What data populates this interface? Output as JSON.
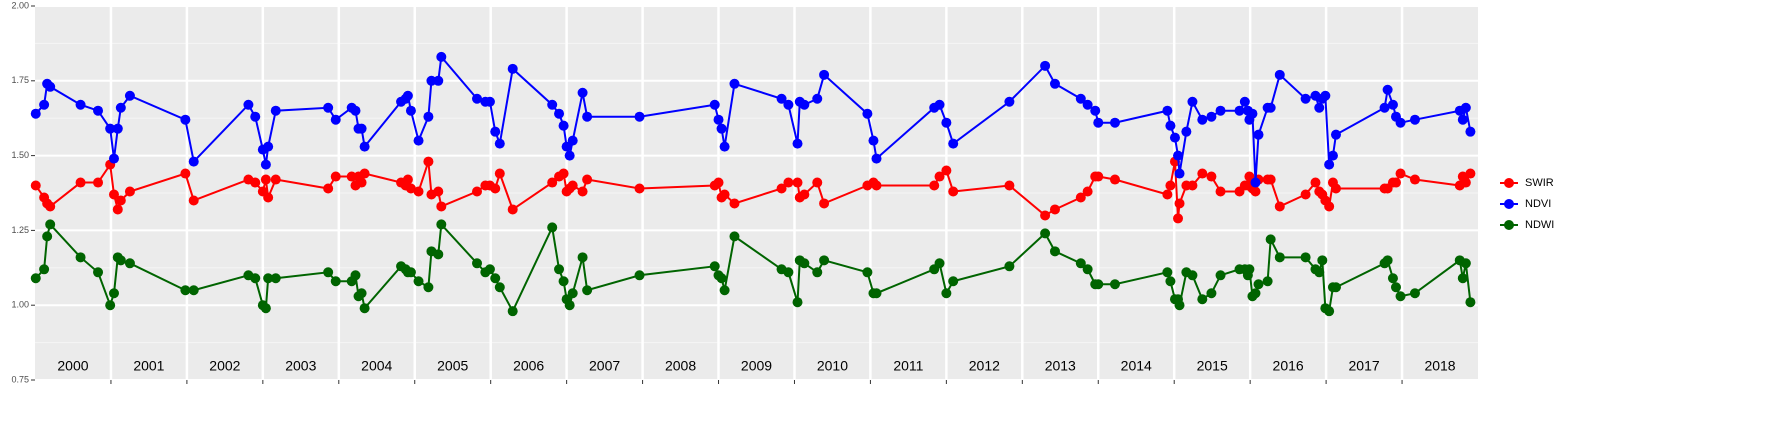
{
  "chart_data": {
    "type": "line",
    "x": [
      2000.01,
      2000.12,
      2000.16,
      2000.2,
      2000.6,
      2000.83,
      2000.99,
      2001.04,
      2001.09,
      2001.13,
      2001.25,
      2001.98,
      2002.09,
      2002.81,
      2002.9,
      2003.0,
      2003.04,
      2003.07,
      2003.17,
      2003.86,
      2003.96,
      2004.17,
      2004.22,
      2004.26,
      2004.3,
      2004.34,
      2004.82,
      2004.88,
      2004.91,
      2004.95,
      2005.05,
      2005.18,
      2005.22,
      2005.31,
      2005.35,
      2005.82,
      2005.93,
      2005.99,
      2006.06,
      2006.12,
      2006.29,
      2006.81,
      2006.9,
      2006.96,
      2007.0,
      2007.04,
      2007.08,
      2007.21,
      2007.27,
      2007.96,
      2008.95,
      2009.0,
      2009.04,
      2009.08,
      2009.21,
      2009.83,
      2009.92,
      2010.04,
      2010.07,
      2010.13,
      2010.3,
      2010.39,
      2010.96,
      2011.04,
      2011.08,
      2011.84,
      2011.91,
      2012.0,
      2012.09,
      2012.83,
      2013.3,
      2013.43,
      2013.77,
      2013.86,
      2013.96,
      2014.0,
      2014.22,
      2014.91,
      2014.95,
      2015.01,
      2015.05,
      2015.07,
      2015.16,
      2015.24,
      2015.37,
      2015.49,
      2015.61,
      2015.86,
      2015.93,
      2015.97,
      2015.99,
      2016.03,
      2016.07,
      2016.11,
      2016.23,
      2016.27,
      2016.39,
      2016.73,
      2016.86,
      2016.91,
      2016.95,
      2016.99,
      2017.04,
      2017.09,
      2017.13,
      2017.77,
      2017.81,
      2017.88,
      2017.92,
      2017.98,
      2018.17,
      2018.76,
      2018.8,
      2018.84,
      2018.9
    ],
    "series": [
      {
        "name": "SWIR",
        "color": "#ff0000",
        "values": [
          1.4,
          1.36,
          1.34,
          1.33,
          1.41,
          1.41,
          1.47,
          1.37,
          1.32,
          1.35,
          1.38,
          1.44,
          1.35,
          1.42,
          1.41,
          1.38,
          1.42,
          1.36,
          1.42,
          1.39,
          1.43,
          1.43,
          1.4,
          1.43,
          1.41,
          1.44,
          1.41,
          1.4,
          1.42,
          1.39,
          1.38,
          1.48,
          1.37,
          1.38,
          1.33,
          1.38,
          1.4,
          1.4,
          1.39,
          1.44,
          1.32,
          1.41,
          1.43,
          1.44,
          1.38,
          1.39,
          1.4,
          1.38,
          1.42,
          1.39,
          1.4,
          1.41,
          1.36,
          1.37,
          1.34,
          1.39,
          1.41,
          1.41,
          1.36,
          1.37,
          1.41,
          1.34,
          1.4,
          1.41,
          1.4,
          1.4,
          1.43,
          1.45,
          1.38,
          1.4,
          1.3,
          1.32,
          1.36,
          1.38,
          1.43,
          1.43,
          1.42,
          1.37,
          1.4,
          1.48,
          1.29,
          1.34,
          1.4,
          1.4,
          1.44,
          1.43,
          1.38,
          1.38,
          1.4,
          1.4,
          1.43,
          1.39,
          1.38,
          1.42,
          1.42,
          1.42,
          1.33,
          1.37,
          1.41,
          1.38,
          1.37,
          1.35,
          1.33,
          1.41,
          1.39,
          1.39,
          1.39,
          1.41,
          1.41,
          1.44,
          1.42,
          1.4,
          1.43,
          1.41,
          1.44
        ]
      },
      {
        "name": "NDVI",
        "color": "#0000ff",
        "values": [
          1.64,
          1.67,
          1.74,
          1.73,
          1.67,
          1.65,
          1.59,
          1.49,
          1.59,
          1.66,
          1.7,
          1.62,
          1.48,
          1.67,
          1.63,
          1.52,
          1.47,
          1.53,
          1.65,
          1.66,
          1.62,
          1.66,
          1.65,
          1.59,
          1.59,
          1.53,
          1.68,
          1.69,
          1.7,
          1.65,
          1.55,
          1.63,
          1.75,
          1.75,
          1.83,
          1.69,
          1.68,
          1.68,
          1.58,
          1.54,
          1.79,
          1.67,
          1.64,
          1.6,
          1.53,
          1.5,
          1.55,
          1.71,
          1.63,
          1.63,
          1.67,
          1.62,
          1.59,
          1.53,
          1.74,
          1.69,
          1.67,
          1.54,
          1.68,
          1.67,
          1.69,
          1.77,
          1.64,
          1.55,
          1.49,
          1.66,
          1.67,
          1.61,
          1.54,
          1.68,
          1.8,
          1.74,
          1.69,
          1.67,
          1.65,
          1.61,
          1.61,
          1.65,
          1.6,
          1.56,
          1.5,
          1.44,
          1.58,
          1.68,
          1.62,
          1.63,
          1.65,
          1.65,
          1.68,
          1.65,
          1.62,
          1.64,
          1.41,
          1.57,
          1.66,
          1.66,
          1.77,
          1.69,
          1.7,
          1.66,
          1.69,
          1.7,
          1.47,
          1.5,
          1.57,
          1.66,
          1.72,
          1.67,
          1.63,
          1.61,
          1.62,
          1.65,
          1.62,
          1.66,
          1.58
        ]
      },
      {
        "name": "NDWI",
        "color": "#006400",
        "values": [
          1.09,
          1.12,
          1.23,
          1.27,
          1.16,
          1.11,
          1.0,
          1.04,
          1.16,
          1.15,
          1.14,
          1.05,
          1.05,
          1.1,
          1.09,
          1.0,
          0.99,
          1.09,
          1.09,
          1.11,
          1.08,
          1.08,
          1.1,
          1.03,
          1.04,
          0.99,
          1.13,
          1.12,
          1.11,
          1.11,
          1.08,
          1.06,
          1.18,
          1.17,
          1.27,
          1.14,
          1.11,
          1.12,
          1.09,
          1.06,
          0.98,
          1.26,
          1.12,
          1.08,
          1.02,
          1.0,
          1.04,
          1.16,
          1.05,
          1.1,
          1.13,
          1.1,
          1.09,
          1.05,
          1.23,
          1.12,
          1.11,
          1.01,
          1.15,
          1.14,
          1.11,
          1.15,
          1.11,
          1.04,
          1.04,
          1.12,
          1.14,
          1.04,
          1.08,
          1.13,
          1.24,
          1.18,
          1.14,
          1.12,
          1.07,
          1.07,
          1.07,
          1.11,
          1.08,
          1.02,
          1.02,
          1.0,
          1.11,
          1.1,
          1.02,
          1.04,
          1.1,
          1.12,
          1.12,
          1.1,
          1.12,
          1.03,
          1.04,
          1.07,
          1.08,
          1.22,
          1.16,
          1.16,
          1.12,
          1.11,
          1.15,
          0.99,
          0.98,
          1.06,
          1.06,
          1.14,
          1.15,
          1.09,
          1.06,
          1.03,
          1.04,
          1.15,
          1.09,
          1.14,
          1.01
        ]
      }
    ],
    "xlim": [
      2000,
      2019
    ],
    "year_breaks": [
      2001,
      2002,
      2003,
      2004,
      2005,
      2006,
      2007,
      2008,
      2009,
      2010,
      2011,
      2012,
      2013,
      2014,
      2015,
      2016,
      2017,
      2018
    ],
    "year_labels": [
      {
        "value": 2000.5,
        "label": "2000"
      },
      {
        "value": 2001.5,
        "label": "2001"
      },
      {
        "value": 2002.5,
        "label": "2002"
      },
      {
        "value": 2003.5,
        "label": "2003"
      },
      {
        "value": 2004.5,
        "label": "2004"
      },
      {
        "value": 2005.5,
        "label": "2005"
      },
      {
        "value": 2006.5,
        "label": "2006"
      },
      {
        "value": 2007.5,
        "label": "2007"
      },
      {
        "value": 2008.5,
        "label": "2008"
      },
      {
        "value": 2009.5,
        "label": "2009"
      },
      {
        "value": 2010.5,
        "label": "2010"
      },
      {
        "value": 2011.5,
        "label": "2011"
      },
      {
        "value": 2012.5,
        "label": "2012"
      },
      {
        "value": 2013.5,
        "label": "2013"
      },
      {
        "value": 2014.5,
        "label": "2014"
      },
      {
        "value": 2015.5,
        "label": "2015"
      },
      {
        "value": 2016.5,
        "label": "2016"
      },
      {
        "value": 2017.5,
        "label": "2017"
      },
      {
        "value": 2018.5,
        "label": "2018"
      }
    ],
    "ylim": [
      0.75,
      2.0
    ],
    "yticks": [
      {
        "value": 0.75,
        "label": "0.75"
      },
      {
        "value": 1.0,
        "label": "1.00"
      },
      {
        "value": 1.25,
        "label": "1.25"
      },
      {
        "value": 1.5,
        "label": "1.50"
      },
      {
        "value": 1.75,
        "label": "1.75"
      },
      {
        "value": 2.0,
        "label": "2.00"
      }
    ],
    "grid": true,
    "legend": "right"
  }
}
